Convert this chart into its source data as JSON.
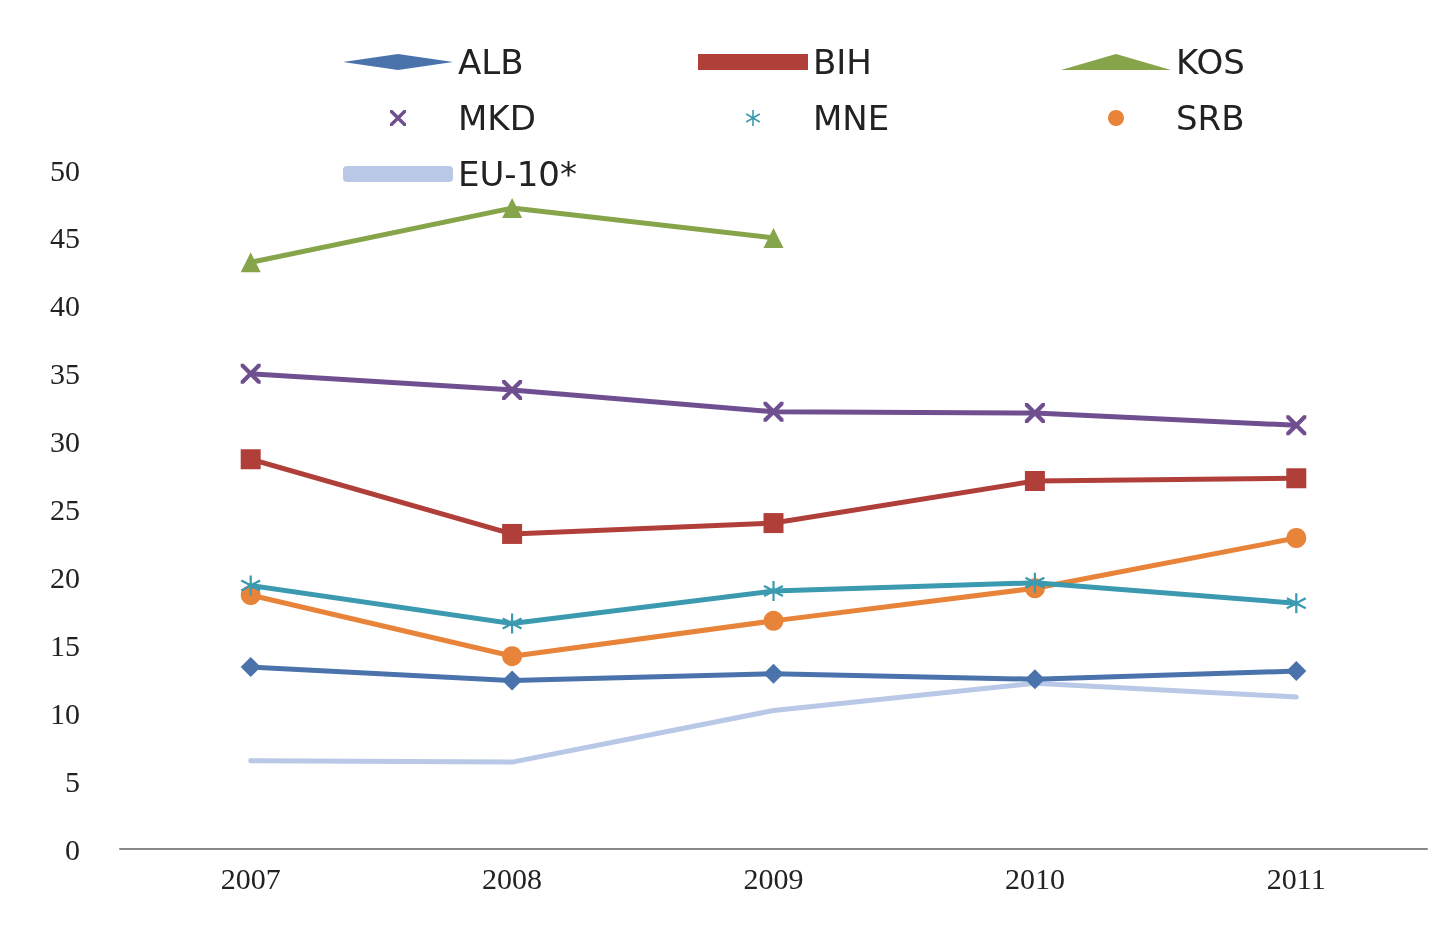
{
  "chart_data": {
    "type": "line",
    "categories": [
      "2007",
      "2008",
      "2009",
      "2010",
      "2011"
    ],
    "series": [
      {
        "name": "ALB",
        "color": "#4a72ab",
        "marker": "diamond",
        "values": [
          13.4,
          12.4,
          12.9,
          12.5,
          13.1
        ]
      },
      {
        "name": "BIH",
        "color": "#b03f3a",
        "marker": "square",
        "values": [
          28.7,
          23.2,
          24.0,
          27.1,
          27.3
        ]
      },
      {
        "name": "KOS",
        "color": "#86a44a",
        "marker": "triangle",
        "values": [
          43.2,
          47.2,
          45.0,
          null,
          null
        ]
      },
      {
        "name": "MKD",
        "color": "#6f4f8f",
        "marker": "cross",
        "values": [
          35.0,
          33.8,
          32.2,
          32.1,
          31.2
        ]
      },
      {
        "name": "MNE",
        "color": "#3b9ab0",
        "marker": "star",
        "values": [
          19.4,
          16.6,
          19.0,
          19.6,
          18.1
        ]
      },
      {
        "name": "SRB",
        "color": "#e8843a",
        "marker": "circle",
        "values": [
          18.7,
          14.2,
          16.8,
          19.2,
          22.9
        ]
      },
      {
        "name": "EU-10*",
        "color": "#b8c8e6",
        "marker": "none",
        "values": [
          6.5,
          6.4,
          10.2,
          12.2,
          11.2
        ]
      }
    ],
    "ylim": [
      0,
      50
    ],
    "yticks": [
      0,
      5,
      10,
      15,
      20,
      25,
      30,
      35,
      40,
      45,
      50
    ],
    "grid": false,
    "legend": "top",
    "line_style": "solid"
  }
}
